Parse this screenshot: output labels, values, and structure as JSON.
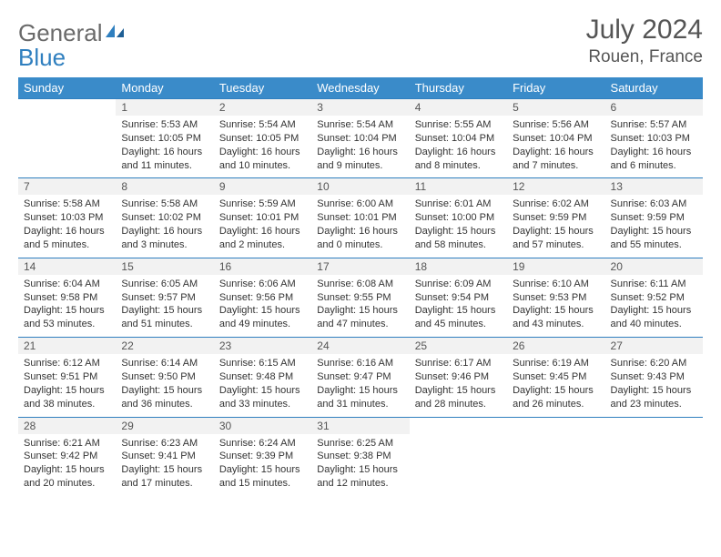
{
  "logo": {
    "word1": "General",
    "word2": "Blue"
  },
  "title": "July 2024",
  "location": "Rouen, France",
  "dayHeaders": [
    "Sunday",
    "Monday",
    "Tuesday",
    "Wednesday",
    "Thursday",
    "Friday",
    "Saturday"
  ],
  "colors": {
    "headerBg": "#3a8bc9",
    "rowBorder": "#2f7fbf",
    "dayBg": "#f2f2f2",
    "text": "#333333",
    "logoGray": "#6a6a6a",
    "logoBlue": "#2f7fbf"
  },
  "fonts": {
    "title_pt": 30,
    "location_pt": 19,
    "header_pt": 13,
    "daynum_pt": 12,
    "cell_pt": 11
  },
  "weeks": [
    [
      null,
      {
        "n": "1",
        "sr": "Sunrise: 5:53 AM",
        "ss": "Sunset: 10:05 PM",
        "d1": "Daylight: 16 hours",
        "d2": "and 11 minutes."
      },
      {
        "n": "2",
        "sr": "Sunrise: 5:54 AM",
        "ss": "Sunset: 10:05 PM",
        "d1": "Daylight: 16 hours",
        "d2": "and 10 minutes."
      },
      {
        "n": "3",
        "sr": "Sunrise: 5:54 AM",
        "ss": "Sunset: 10:04 PM",
        "d1": "Daylight: 16 hours",
        "d2": "and 9 minutes."
      },
      {
        "n": "4",
        "sr": "Sunrise: 5:55 AM",
        "ss": "Sunset: 10:04 PM",
        "d1": "Daylight: 16 hours",
        "d2": "and 8 minutes."
      },
      {
        "n": "5",
        "sr": "Sunrise: 5:56 AM",
        "ss": "Sunset: 10:04 PM",
        "d1": "Daylight: 16 hours",
        "d2": "and 7 minutes."
      },
      {
        "n": "6",
        "sr": "Sunrise: 5:57 AM",
        "ss": "Sunset: 10:03 PM",
        "d1": "Daylight: 16 hours",
        "d2": "and 6 minutes."
      }
    ],
    [
      {
        "n": "7",
        "sr": "Sunrise: 5:58 AM",
        "ss": "Sunset: 10:03 PM",
        "d1": "Daylight: 16 hours",
        "d2": "and 5 minutes."
      },
      {
        "n": "8",
        "sr": "Sunrise: 5:58 AM",
        "ss": "Sunset: 10:02 PM",
        "d1": "Daylight: 16 hours",
        "d2": "and 3 minutes."
      },
      {
        "n": "9",
        "sr": "Sunrise: 5:59 AM",
        "ss": "Sunset: 10:01 PM",
        "d1": "Daylight: 16 hours",
        "d2": "and 2 minutes."
      },
      {
        "n": "10",
        "sr": "Sunrise: 6:00 AM",
        "ss": "Sunset: 10:01 PM",
        "d1": "Daylight: 16 hours",
        "d2": "and 0 minutes."
      },
      {
        "n": "11",
        "sr": "Sunrise: 6:01 AM",
        "ss": "Sunset: 10:00 PM",
        "d1": "Daylight: 15 hours",
        "d2": "and 58 minutes."
      },
      {
        "n": "12",
        "sr": "Sunrise: 6:02 AM",
        "ss": "Sunset: 9:59 PM",
        "d1": "Daylight: 15 hours",
        "d2": "and 57 minutes."
      },
      {
        "n": "13",
        "sr": "Sunrise: 6:03 AM",
        "ss": "Sunset: 9:59 PM",
        "d1": "Daylight: 15 hours",
        "d2": "and 55 minutes."
      }
    ],
    [
      {
        "n": "14",
        "sr": "Sunrise: 6:04 AM",
        "ss": "Sunset: 9:58 PM",
        "d1": "Daylight: 15 hours",
        "d2": "and 53 minutes."
      },
      {
        "n": "15",
        "sr": "Sunrise: 6:05 AM",
        "ss": "Sunset: 9:57 PM",
        "d1": "Daylight: 15 hours",
        "d2": "and 51 minutes."
      },
      {
        "n": "16",
        "sr": "Sunrise: 6:06 AM",
        "ss": "Sunset: 9:56 PM",
        "d1": "Daylight: 15 hours",
        "d2": "and 49 minutes."
      },
      {
        "n": "17",
        "sr": "Sunrise: 6:08 AM",
        "ss": "Sunset: 9:55 PM",
        "d1": "Daylight: 15 hours",
        "d2": "and 47 minutes."
      },
      {
        "n": "18",
        "sr": "Sunrise: 6:09 AM",
        "ss": "Sunset: 9:54 PM",
        "d1": "Daylight: 15 hours",
        "d2": "and 45 minutes."
      },
      {
        "n": "19",
        "sr": "Sunrise: 6:10 AM",
        "ss": "Sunset: 9:53 PM",
        "d1": "Daylight: 15 hours",
        "d2": "and 43 minutes."
      },
      {
        "n": "20",
        "sr": "Sunrise: 6:11 AM",
        "ss": "Sunset: 9:52 PM",
        "d1": "Daylight: 15 hours",
        "d2": "and 40 minutes."
      }
    ],
    [
      {
        "n": "21",
        "sr": "Sunrise: 6:12 AM",
        "ss": "Sunset: 9:51 PM",
        "d1": "Daylight: 15 hours",
        "d2": "and 38 minutes."
      },
      {
        "n": "22",
        "sr": "Sunrise: 6:14 AM",
        "ss": "Sunset: 9:50 PM",
        "d1": "Daylight: 15 hours",
        "d2": "and 36 minutes."
      },
      {
        "n": "23",
        "sr": "Sunrise: 6:15 AM",
        "ss": "Sunset: 9:48 PM",
        "d1": "Daylight: 15 hours",
        "d2": "and 33 minutes."
      },
      {
        "n": "24",
        "sr": "Sunrise: 6:16 AM",
        "ss": "Sunset: 9:47 PM",
        "d1": "Daylight: 15 hours",
        "d2": "and 31 minutes."
      },
      {
        "n": "25",
        "sr": "Sunrise: 6:17 AM",
        "ss": "Sunset: 9:46 PM",
        "d1": "Daylight: 15 hours",
        "d2": "and 28 minutes."
      },
      {
        "n": "26",
        "sr": "Sunrise: 6:19 AM",
        "ss": "Sunset: 9:45 PM",
        "d1": "Daylight: 15 hours",
        "d2": "and 26 minutes."
      },
      {
        "n": "27",
        "sr": "Sunrise: 6:20 AM",
        "ss": "Sunset: 9:43 PM",
        "d1": "Daylight: 15 hours",
        "d2": "and 23 minutes."
      }
    ],
    [
      {
        "n": "28",
        "sr": "Sunrise: 6:21 AM",
        "ss": "Sunset: 9:42 PM",
        "d1": "Daylight: 15 hours",
        "d2": "and 20 minutes."
      },
      {
        "n": "29",
        "sr": "Sunrise: 6:23 AM",
        "ss": "Sunset: 9:41 PM",
        "d1": "Daylight: 15 hours",
        "d2": "and 17 minutes."
      },
      {
        "n": "30",
        "sr": "Sunrise: 6:24 AM",
        "ss": "Sunset: 9:39 PM",
        "d1": "Daylight: 15 hours",
        "d2": "and 15 minutes."
      },
      {
        "n": "31",
        "sr": "Sunrise: 6:25 AM",
        "ss": "Sunset: 9:38 PM",
        "d1": "Daylight: 15 hours",
        "d2": "and 12 minutes."
      },
      null,
      null,
      null
    ]
  ]
}
